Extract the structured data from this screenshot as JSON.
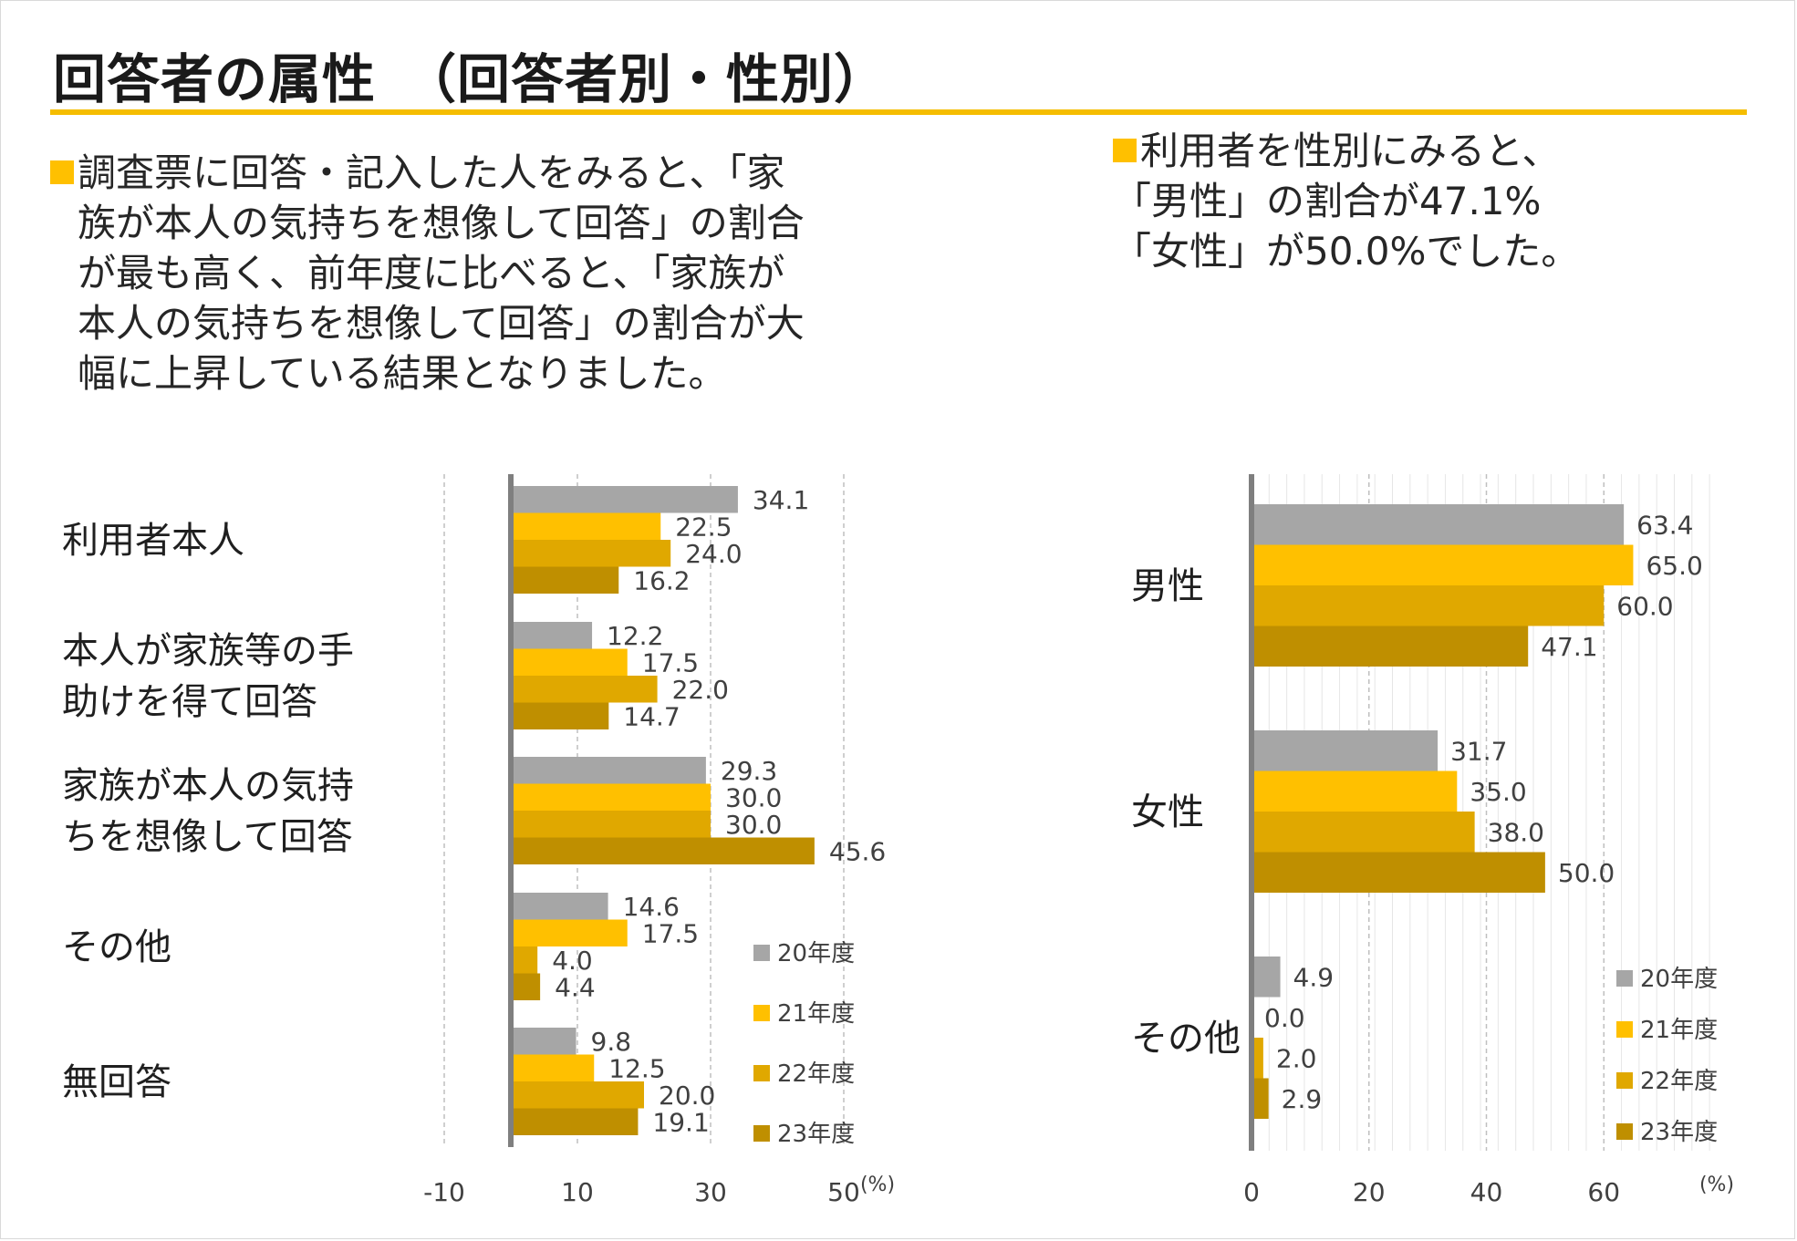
{
  "title": "回答者の属性　（回答者別・性別）",
  "left_text": {
    "lines": [
      "調査票に回答・記入した人をみると、「家",
      "族が本人の気持ちを想像して回答」の割合",
      "が最も高く、前年度に比べると、「家族が",
      "本人の気持ちを想像して回答」の割合が大",
      "幅に上昇している結果となりました。"
    ]
  },
  "right_text": {
    "lines": [
      "利用者を性別にみると、",
      "「男性」の割合が47.1%",
      "「女性」が50.0%でした。"
    ]
  },
  "colors": {
    "accent": "#f5bd00",
    "series": [
      "#a6a6a6",
      "#ffc000",
      "#e0a800",
      "#bf8f00"
    ],
    "grid": "#bfbfbf",
    "axis": "#7f7f7f"
  },
  "chart_data": [
    {
      "type": "bar",
      "orientation": "horizontal",
      "categories": [
        "利用者本人",
        "本人が家族等の手助けを得て回答",
        "家族が本人の気持ちを想像して回答",
        "その他",
        "無回答"
      ],
      "category_lines": [
        [
          "利用者本人"
        ],
        [
          "本人が家族等の手",
          "助けを得て回答"
        ],
        [
          "家族が本人の気持",
          "ちを想像して回答"
        ],
        [
          "その他"
        ],
        [
          "無回答"
        ]
      ],
      "series": [
        {
          "name": "20年度",
          "values": [
            34.1,
            12.2,
            29.3,
            14.6,
            9.8
          ],
          "labels": [
            "34.1",
            "12.2",
            "29.3",
            "14.6",
            "9.8"
          ]
        },
        {
          "name": "21年度",
          "values": [
            22.5,
            17.5,
            30.0,
            17.5,
            12.5
          ],
          "labels": [
            "22.5",
            "17.5",
            "30.0",
            "17.5",
            "12.5"
          ]
        },
        {
          "name": "22年度",
          "values": [
            24.0,
            22.0,
            30.0,
            4.0,
            20.0
          ],
          "labels": [
            "24.0",
            "22.0",
            "30.0",
            "4.0",
            "20.0"
          ]
        },
        {
          "name": "23年度",
          "values": [
            16.2,
            14.7,
            45.6,
            4.4,
            19.1
          ],
          "labels": [
            "16.2",
            "14.7",
            "45.6",
            "4.4",
            "19.1"
          ]
        }
      ],
      "xlim": [
        -10,
        60
      ],
      "xticks": [
        "-10",
        "10",
        "30",
        "50"
      ],
      "xtick_values": [
        -10,
        10,
        30,
        50
      ],
      "grid_values": [
        -10,
        10,
        30,
        50
      ],
      "unit": "(%)",
      "grid": "dashed vertical",
      "legend": "bottom-right"
    },
    {
      "type": "bar",
      "orientation": "horizontal",
      "categories": [
        "男性",
        "女性",
        "その他"
      ],
      "category_lines": [
        [
          "男性"
        ],
        [
          "女性"
        ],
        [
          "その他"
        ]
      ],
      "series": [
        {
          "name": "20年度",
          "values": [
            63.4,
            31.7,
            4.9
          ],
          "labels": [
            "63.4",
            "31.7",
            "4.9"
          ]
        },
        {
          "name": "21年度",
          "values": [
            65.0,
            35.0,
            0.0
          ],
          "labels": [
            "65.0",
            "35.0",
            "0.0"
          ]
        },
        {
          "name": "22年度",
          "values": [
            60.0,
            38.0,
            2.0
          ],
          "labels": [
            "60.0",
            "38.0",
            "2.0"
          ]
        },
        {
          "name": "23年度",
          "values": [
            47.1,
            50.0,
            2.9
          ],
          "labels": [
            "47.1",
            "50.0",
            "2.9"
          ]
        }
      ],
      "xlim": [
        0,
        80
      ],
      "xticks": [
        "0",
        "20",
        "40",
        "60"
      ],
      "xtick_values": [
        0,
        20,
        40,
        60
      ],
      "grid_values": [
        20,
        40,
        60
      ],
      "unit": "(%)",
      "grid": "dashed vertical",
      "legend": "bottom-right"
    }
  ]
}
